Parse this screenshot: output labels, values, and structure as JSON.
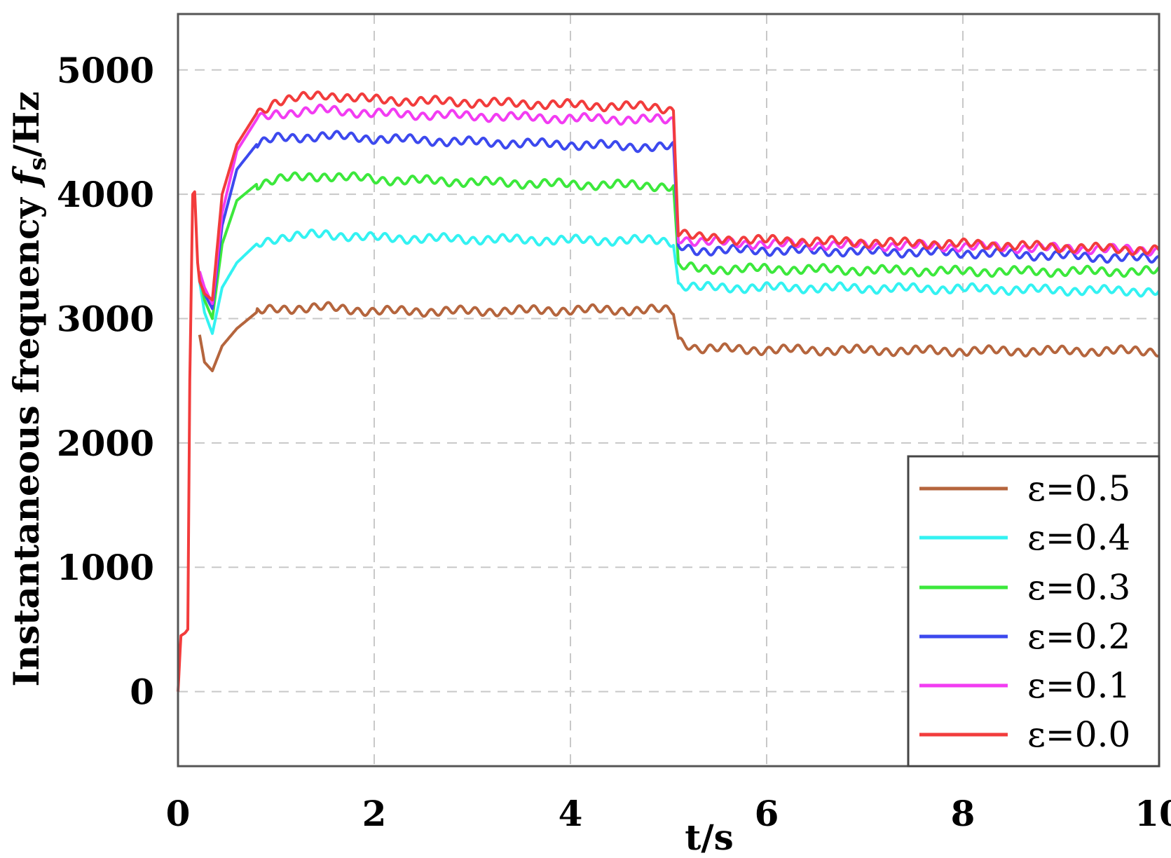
{
  "chart_data": {
    "type": "line",
    "xlabel": "t/s",
    "ylabel_prefix": "Instantaneous frequency ",
    "ylabel_symbol": "f",
    "ylabel_subscript": "s",
    "ylabel_suffix": "/Hz",
    "xlim": [
      0,
      10
    ],
    "ylim": [
      -600,
      5450
    ],
    "xticks": [
      0,
      2,
      4,
      6,
      8,
      10
    ],
    "yticks": [
      0,
      1000,
      2000,
      3000,
      4000,
      5000
    ],
    "grid": true,
    "legend_position": "bottom-right",
    "series": [
      {
        "name": "ε=0.5",
        "color": "#b5653d",
        "x": [
          0.22,
          0.27,
          0.35,
          0.45,
          0.6,
          0.8,
          1.0,
          1.5,
          2.0,
          3.0,
          4.0,
          4.9,
          5.05,
          5.1,
          5.3,
          6.0,
          8.0,
          10.0
        ],
        "y": [
          2870,
          2650,
          2580,
          2780,
          2920,
          3050,
          3080,
          3090,
          3060,
          3060,
          3070,
          3070,
          3060,
          2830,
          2760,
          2750,
          2740,
          2740
        ]
      },
      {
        "name": "ε=0.4",
        "color": "#33f2f2",
        "x": [
          0.22,
          0.27,
          0.35,
          0.45,
          0.6,
          0.8,
          1.0,
          1.5,
          2.0,
          3.0,
          4.0,
          4.9,
          5.05,
          5.1,
          5.3,
          6.0,
          8.0,
          10.0
        ],
        "y": [
          3300,
          3050,
          2880,
          3250,
          3450,
          3600,
          3650,
          3680,
          3650,
          3640,
          3630,
          3630,
          3620,
          3270,
          3250,
          3250,
          3240,
          3220
        ]
      },
      {
        "name": "ε=0.3",
        "color": "#3ce83c",
        "x": [
          0.22,
          0.27,
          0.35,
          0.45,
          0.6,
          0.8,
          1.0,
          1.5,
          2.0,
          3.0,
          4.0,
          4.9,
          5.05,
          5.1,
          5.3,
          6.0,
          8.0,
          10.0
        ],
        "y": [
          3350,
          3150,
          3000,
          3600,
          3950,
          4080,
          4120,
          4150,
          4120,
          4100,
          4080,
          4070,
          4060,
          3420,
          3400,
          3400,
          3380,
          3380
        ]
      },
      {
        "name": "ε=0.2",
        "color": "#3c49ee",
        "x": [
          0.22,
          0.27,
          0.35,
          0.45,
          0.6,
          0.8,
          1.0,
          1.5,
          2.0,
          3.0,
          4.0,
          4.9,
          5.05,
          5.1,
          5.3,
          6.0,
          8.0,
          10.0
        ],
        "y": [
          3380,
          3200,
          3080,
          3750,
          4200,
          4400,
          4450,
          4470,
          4450,
          4420,
          4400,
          4380,
          4380,
          3580,
          3550,
          3550,
          3530,
          3480
        ]
      },
      {
        "name": "ε=0.1",
        "color": "#f23cf2",
        "x": [
          0.22,
          0.27,
          0.35,
          0.45,
          0.6,
          0.8,
          1.0,
          1.5,
          2.0,
          3.0,
          4.0,
          4.9,
          5.05,
          5.1,
          5.3,
          6.0,
          8.0,
          10.0
        ],
        "y": [
          3380,
          3250,
          3120,
          3850,
          4350,
          4600,
          4650,
          4680,
          4650,
          4630,
          4610,
          4600,
          4590,
          3650,
          3620,
          3600,
          3580,
          3550
        ]
      },
      {
        "name": "ε=0.0",
        "color": "#f23c3c",
        "x": [
          0.0,
          0.03,
          0.07,
          0.1,
          0.12,
          0.15,
          0.17,
          0.2,
          0.22,
          0.27,
          0.35,
          0.45,
          0.6,
          0.8,
          1.0,
          1.5,
          2.0,
          3.0,
          4.0,
          4.9,
          5.05,
          5.1,
          5.3,
          6.0,
          8.0,
          10.0
        ],
        "y": [
          0,
          450,
          470,
          500,
          2500,
          4000,
          4020,
          3450,
          3300,
          3200,
          3150,
          4000,
          4400,
          4650,
          4750,
          4800,
          4760,
          4740,
          4720,
          4700,
          4680,
          3700,
          3650,
          3630,
          3600,
          3550
        ]
      }
    ]
  }
}
